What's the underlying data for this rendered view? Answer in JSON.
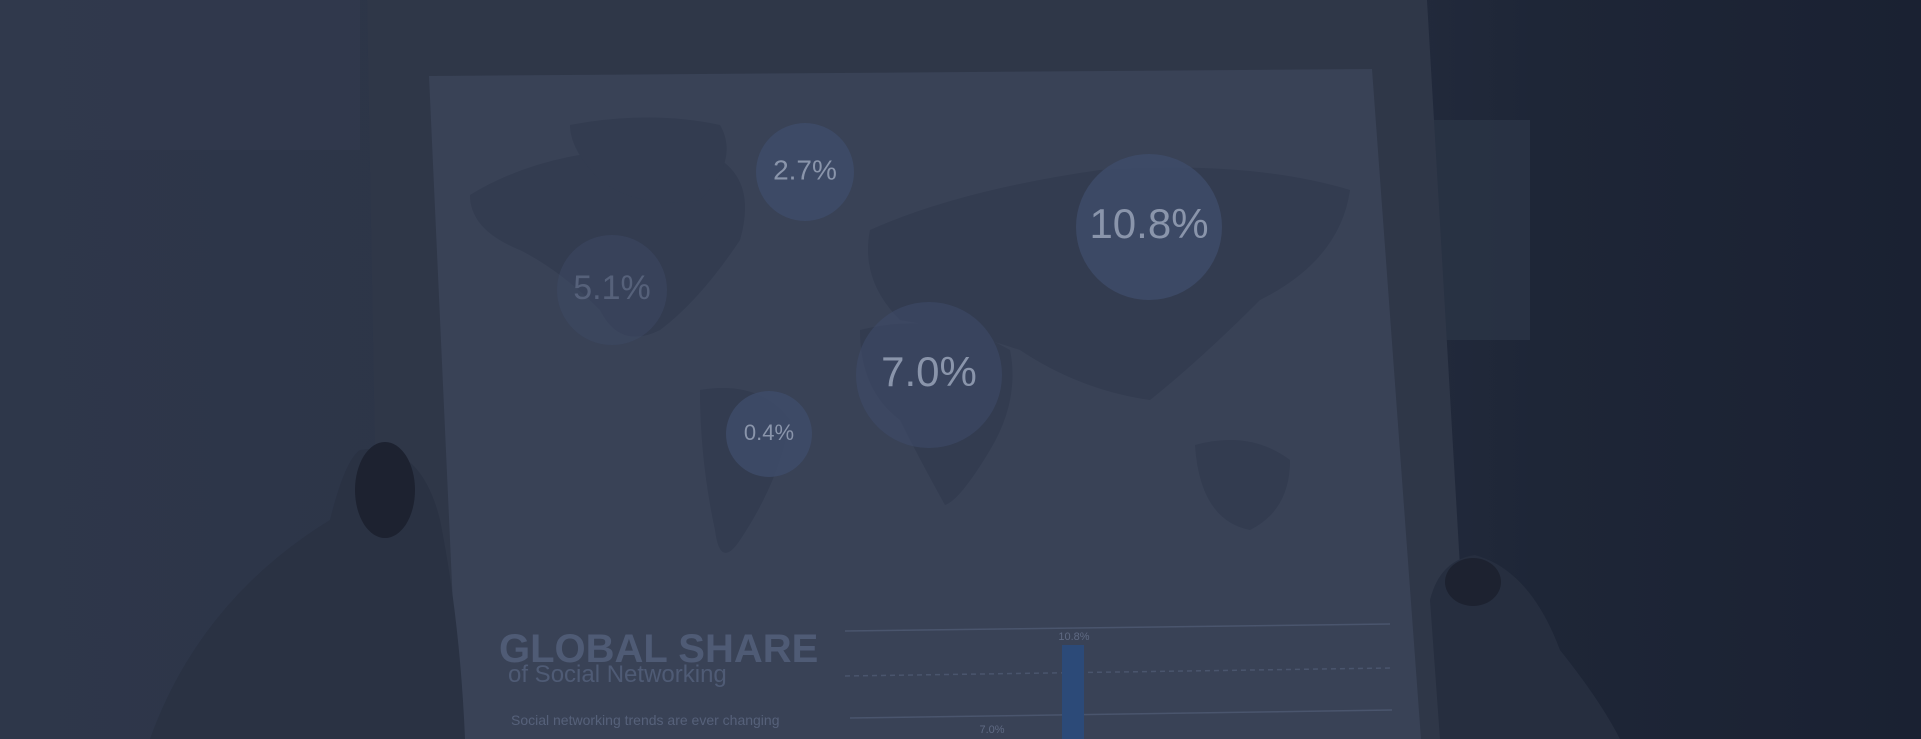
{
  "map_labels": [
    "2.7%",
    "10.8%",
    "5.1%",
    "7.0%",
    "0.4%"
  ],
  "infographic": {
    "title": "GLOBAL SHARE",
    "subtitle": "of Social Networking",
    "body": "Social networking trends are ever changing"
  },
  "bar_labels": [
    "10.8%",
    "7.0%"
  ]
}
